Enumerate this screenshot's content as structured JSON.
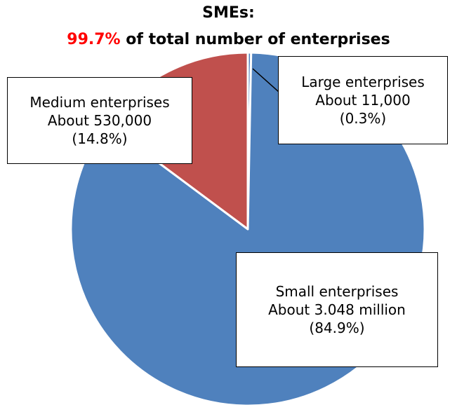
{
  "chart_data": {
    "type": "pie",
    "title_line1": "SMEs:",
    "title_line2_highlight": "99.7%",
    "title_line2_rest": " of total number of enterprises",
    "slices": [
      {
        "name": "Large enterprises",
        "count": "About 11,000",
        "percent_label": "(0.3%)",
        "value": 0.3,
        "color": "#4f81bd"
      },
      {
        "name": "Small enterprises",
        "count": "About 3.048 million",
        "percent_label": "(84.9%)",
        "value": 84.9,
        "color": "#4f81bd"
      },
      {
        "name": "Medium enterprises",
        "count": "About 530,000",
        "percent_label": "(14.8%)",
        "value": 14.8,
        "color": "#c0504d"
      }
    ],
    "start_angle_deg": 0,
    "direction": "clockwise",
    "accent_color": "#ff0000"
  }
}
